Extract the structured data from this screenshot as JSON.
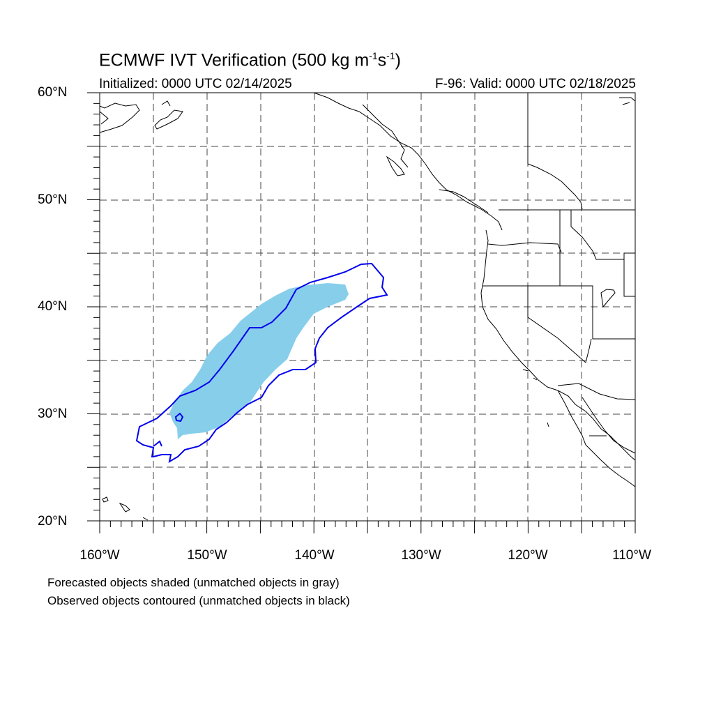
{
  "title": {
    "prefix": "ECMWF IVT Verification (500 kg m",
    "sup1": "-1",
    "mid": "s",
    "sup2": "-1",
    "suffix": ")"
  },
  "subtitle_left": "Initialized: 0000 UTC 02/14/2025",
  "subtitle_right": "F-96: Valid: 0000 UTC 02/18/2025",
  "lat_labels": [
    "60°N",
    "50°N",
    "40°N",
    "30°N",
    "20°N"
  ],
  "lon_labels": [
    "160°W",
    "150°W",
    "140°W",
    "130°W",
    "120°W",
    "110°W"
  ],
  "legend": {
    "line1": "Forecasted objects shaded (unmatched objects in gray)",
    "line2": "Observed objects contoured (unmatched objects in black)"
  },
  "colors": {
    "forecast_fill": "#87ceeb",
    "observed_contour": "#0000ee",
    "coastline": "#000000",
    "grid": "#444444"
  },
  "map_extent": {
    "lon_min": -160,
    "lon_max": -110,
    "lat_min": 20,
    "lat_max": 60
  }
}
